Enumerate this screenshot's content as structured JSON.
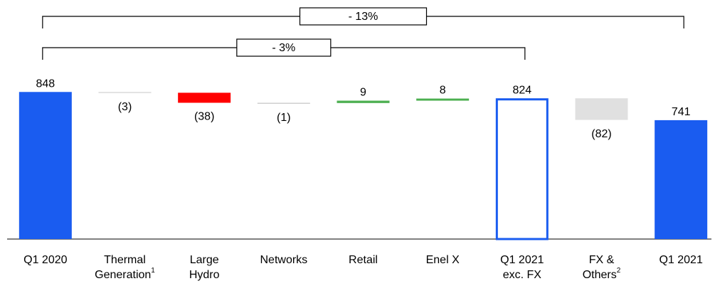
{
  "chart_data": {
    "type": "waterfall",
    "categories": [
      [
        "Q1 2020"
      ],
      [
        "Thermal",
        "Generation"
      ],
      [
        "Large",
        "Hydro"
      ],
      [
        "Networks"
      ],
      [
        "Retail"
      ],
      [
        "Enel X"
      ],
      [
        "Q1 2021",
        "exc. FX"
      ],
      [
        "FX &",
        "Others"
      ],
      [
        "Q1 2021"
      ]
    ],
    "footnotes": [
      null,
      "1",
      null,
      null,
      null,
      null,
      null,
      "2",
      null
    ],
    "measure": [
      "total",
      "relative",
      "relative",
      "relative",
      "relative",
      "relative",
      "total",
      "relative",
      "total"
    ],
    "fill_styles": [
      "solid",
      "solid",
      "solid",
      "solid",
      "solid",
      "solid",
      "outline",
      "solid",
      "solid"
    ],
    "values": [
      848,
      -3,
      -38,
      -1,
      9,
      8,
      824,
      -82,
      741
    ],
    "value_labels": [
      "848",
      "(3)",
      "(38)",
      "(1)",
      "9",
      "8",
      "824",
      "(82)",
      "741"
    ],
    "colors": [
      "#1a5cf0",
      "#d9d9d9",
      "#ff0000",
      "#cfcfcf",
      "#4caf50",
      "#4caf50",
      "#1a5cf0",
      "#e0e0e0",
      "#1a5cf0"
    ],
    "ylim": [
      290,
      900
    ],
    "annotations": [
      {
        "text": "- 13%",
        "from": 0,
        "to": 8
      },
      {
        "text": "- 3%",
        "from": 0,
        "to": 6
      }
    ]
  }
}
